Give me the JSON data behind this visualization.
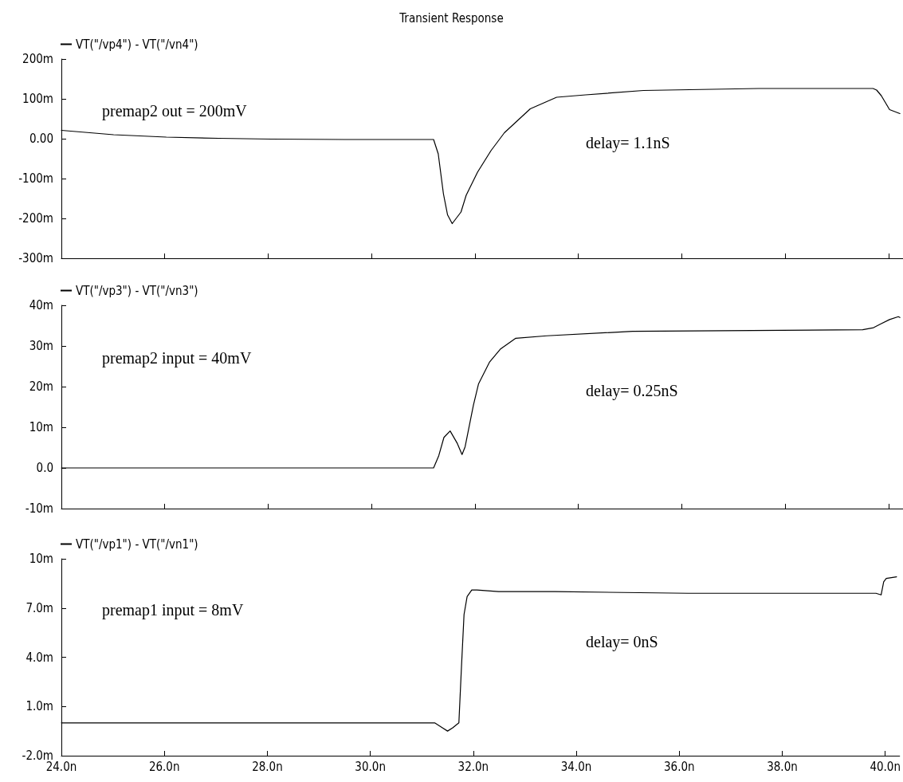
{
  "chart_data": [
    {
      "type": "line",
      "title": "Transient Response",
      "legend": "top left",
      "tick_labels": "y",
      "x": [
        24,
        25.01,
        26.03,
        27.04,
        28.06,
        29.48,
        30.19,
        31.2,
        31.29,
        31.39,
        31.47,
        31.56,
        31.73,
        31.83,
        32.05,
        32.31,
        32.57,
        33.07,
        33.58,
        34.14,
        35.26,
        37.49,
        39.7,
        39.77,
        39.86,
        40.02,
        40.22
      ],
      "series": [
        {
          "name": "VT(\"/vp4\") - VT(\"/vn4\")",
          "color": "#000000",
          "values": [
            21,
            10,
            4,
            1,
            -1,
            -2,
            -2,
            -2,
            -38,
            -138,
            -191,
            -213,
            -184,
            -142,
            -84,
            -30,
            15,
            75,
            104,
            110,
            121,
            126,
            126,
            122,
            108,
            73,
            63
          ]
        }
      ],
      "xlim": [
        24,
        40.28
      ],
      "xticks": [
        {
          "value": 24,
          "label": null
        },
        {
          "value": 26,
          "label": null
        },
        {
          "value": 28,
          "label": null
        },
        {
          "value": 30,
          "label": null
        },
        {
          "value": 32,
          "label": null
        },
        {
          "value": 34,
          "label": null
        },
        {
          "value": 36,
          "label": null
        },
        {
          "value": 38,
          "label": null
        },
        {
          "value": 40,
          "label": null
        }
      ],
      "ylim": [
        -300,
        200
      ],
      "yticks": [
        {
          "value": -300,
          "label": "-300m"
        },
        {
          "value": -200,
          "label": "-200m"
        },
        {
          "value": -100,
          "label": "-100m"
        },
        {
          "value": 0,
          "label": "0.00"
        },
        {
          "value": 100,
          "label": "100m"
        },
        {
          "value": 200,
          "label": "200m"
        }
      ],
      "annotations": [
        "premap2 out = 200mV",
        "delay= 1.1nS"
      ]
    },
    {
      "type": "line",
      "legend": "top left",
      "tick_labels": "y",
      "x": [
        24,
        29.48,
        30.19,
        30.59,
        31.2,
        31.3,
        31.4,
        31.52,
        31.66,
        31.75,
        31.81,
        31.97,
        32.07,
        32.28,
        32.49,
        32.79,
        33.39,
        35.05,
        39.5,
        39.71,
        39.86,
        40.02,
        40.19,
        40.22
      ],
      "series": [
        {
          "name": "VT(\"/vp3\") - VT(\"/vn3\")",
          "color": "#000000",
          "values": [
            0,
            0,
            0,
            0,
            0,
            3,
            7.5,
            9.1,
            6,
            3.3,
            5.2,
            15.4,
            20.7,
            26,
            29.2,
            31.9,
            32.5,
            33.6,
            34,
            34.5,
            35.5,
            36.5,
            37.2,
            37
          ]
        }
      ],
      "xlim": [
        24,
        40.28
      ],
      "xticks": [
        {
          "value": 24,
          "label": null
        },
        {
          "value": 26,
          "label": null
        },
        {
          "value": 28,
          "label": null
        },
        {
          "value": 30,
          "label": null
        },
        {
          "value": 32,
          "label": null
        },
        {
          "value": 34,
          "label": null
        },
        {
          "value": 36,
          "label": null
        },
        {
          "value": 38,
          "label": null
        },
        {
          "value": 40,
          "label": null
        }
      ],
      "ylim": [
        -10,
        40
      ],
      "yticks": [
        {
          "value": -10,
          "label": "-10m"
        },
        {
          "value": 0,
          "label": "0.0"
        },
        {
          "value": 10,
          "label": "10m"
        },
        {
          "value": 20,
          "label": "20m"
        },
        {
          "value": 30,
          "label": "30m"
        },
        {
          "value": 40,
          "label": "40m"
        }
      ],
      "annotations": [
        "premap2 input = 40mV",
        "delay= 0.25nS"
      ]
    },
    {
      "type": "line",
      "legend": "top left",
      "x": [
        24,
        31.25,
        31.4,
        31.5,
        31.6,
        31.72,
        31.77,
        31.82,
        31.88,
        31.97,
        32.07,
        32.49,
        33.58,
        36.17,
        39.82,
        39.92,
        39.97,
        40.02,
        40.22
      ],
      "series": [
        {
          "name": "VT(\"/vp1\") - VT(\"/vn1\")",
          "color": "#000000",
          "values": [
            0,
            0,
            -0.3,
            -0.5,
            -0.3,
            0,
            3.4,
            6.6,
            7.7,
            8.1,
            8.1,
            8,
            8,
            7.9,
            7.9,
            7.8,
            8.6,
            8.8,
            8.9
          ]
        }
      ],
      "xlim": [
        24,
        40.28
      ],
      "xticks": [
        {
          "value": 24,
          "label": "24.0n"
        },
        {
          "value": 26,
          "label": "26.0n"
        },
        {
          "value": 28,
          "label": "28.0n"
        },
        {
          "value": 30,
          "label": "30.0n"
        },
        {
          "value": 32,
          "label": "32.0n"
        },
        {
          "value": 34,
          "label": "34.0n"
        },
        {
          "value": 36,
          "label": "36.0n"
        },
        {
          "value": 38,
          "label": "38.0n"
        },
        {
          "value": 40,
          "label": "40.0n"
        }
      ],
      "ylim": [
        -2,
        10
      ],
      "yticks": [
        {
          "value": -2,
          "label": "-2.0m"
        },
        {
          "value": 1,
          "label": "1.0m"
        },
        {
          "value": 4,
          "label": "4.0m"
        },
        {
          "value": 7,
          "label": "7.0m"
        },
        {
          "value": 10,
          "label": "10m"
        }
      ],
      "annotations": [
        "premap1 input = 8mV",
        "delay= 0nS"
      ]
    }
  ]
}
